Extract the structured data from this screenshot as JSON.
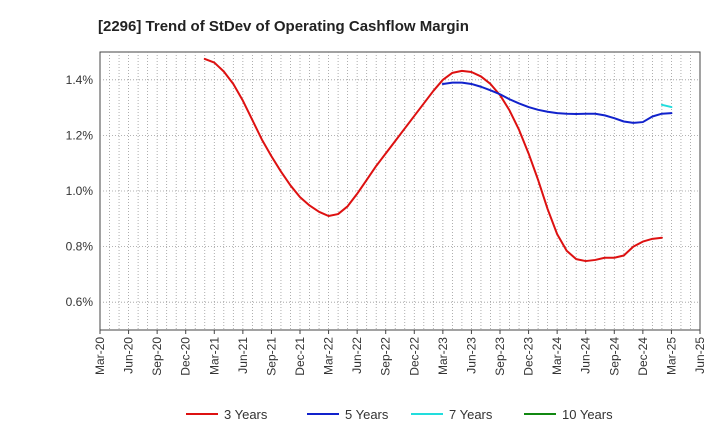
{
  "chart_data": {
    "type": "line",
    "title": "[2296]  Trend of StDev of Operating Cashflow Margin",
    "xlabel": "",
    "ylabel": "",
    "ylim": [
      0.5,
      1.5
    ],
    "y_ticks": [
      "0.6%",
      "0.8%",
      "1.0%",
      "1.2%",
      "1.4%"
    ],
    "y_tick_values": [
      0.6,
      0.8,
      1.0,
      1.2,
      1.4
    ],
    "x_ticks": [
      "Mar-20",
      "Jun-20",
      "Sep-20",
      "Dec-20",
      "Mar-21",
      "Jun-21",
      "Sep-21",
      "Dec-21",
      "Mar-22",
      "Jun-22",
      "Sep-22",
      "Dec-22",
      "Mar-23",
      "Jun-23",
      "Sep-23",
      "Dec-23",
      "Mar-24",
      "Jun-24",
      "Sep-24",
      "Dec-24",
      "Mar-25",
      "Jun-25"
    ],
    "grid": true,
    "legend_position": "bottom",
    "series": [
      {
        "name": "3 Years",
        "color": "#dd1111",
        "points": [
          [
            "Feb-21",
            1.475
          ],
          [
            "Mar-21",
            1.462
          ],
          [
            "Apr-21",
            1.43
          ],
          [
            "May-21",
            1.385
          ],
          [
            "Jun-21",
            1.325
          ],
          [
            "Jul-21",
            1.255
          ],
          [
            "Aug-21",
            1.185
          ],
          [
            "Sep-21",
            1.125
          ],
          [
            "Oct-21",
            1.07
          ],
          [
            "Nov-21",
            1.02
          ],
          [
            "Dec-21",
            0.978
          ],
          [
            "Jan-22",
            0.948
          ],
          [
            "Feb-22",
            0.925
          ],
          [
            "Mar-22",
            0.91
          ],
          [
            "Apr-22",
            0.917
          ],
          [
            "May-22",
            0.945
          ],
          [
            "Jun-22",
            0.99
          ],
          [
            "Jul-22",
            1.04
          ],
          [
            "Aug-22",
            1.09
          ],
          [
            "Sep-22",
            1.135
          ],
          [
            "Oct-22",
            1.18
          ],
          [
            "Nov-22",
            1.225
          ],
          [
            "Dec-22",
            1.27
          ],
          [
            "Jan-23",
            1.315
          ],
          [
            "Feb-23",
            1.36
          ],
          [
            "Mar-23",
            1.4
          ],
          [
            "Apr-23",
            1.425
          ],
          [
            "May-23",
            1.432
          ],
          [
            "Jun-23",
            1.428
          ],
          [
            "Jul-23",
            1.412
          ],
          [
            "Aug-23",
            1.385
          ],
          [
            "Sep-23",
            1.345
          ],
          [
            "Oct-23",
            1.29
          ],
          [
            "Nov-23",
            1.22
          ],
          [
            "Dec-23",
            1.135
          ],
          [
            "Jan-24",
            1.04
          ],
          [
            "Feb-24",
            0.935
          ],
          [
            "Mar-24",
            0.845
          ],
          [
            "Apr-24",
            0.785
          ],
          [
            "May-24",
            0.755
          ],
          [
            "Jun-24",
            0.748
          ],
          [
            "Jul-24",
            0.752
          ],
          [
            "Aug-24",
            0.76
          ],
          [
            "Sep-24",
            0.76
          ],
          [
            "Oct-24",
            0.768
          ],
          [
            "Nov-24",
            0.8
          ],
          [
            "Dec-24",
            0.818
          ],
          [
            "Jan-25",
            0.828
          ],
          [
            "Feb-25",
            0.832
          ]
        ]
      },
      {
        "name": "5 Years",
        "color": "#1122cc",
        "points": [
          [
            "Mar-23",
            1.385
          ],
          [
            "Apr-23",
            1.39
          ],
          [
            "May-23",
            1.39
          ],
          [
            "Jun-23",
            1.385
          ],
          [
            "Jul-23",
            1.375
          ],
          [
            "Aug-23",
            1.362
          ],
          [
            "Sep-23",
            1.348
          ],
          [
            "Oct-23",
            1.33
          ],
          [
            "Nov-23",
            1.315
          ],
          [
            "Dec-23",
            1.302
          ],
          [
            "Jan-24",
            1.292
          ],
          [
            "Feb-24",
            1.285
          ],
          [
            "Mar-24",
            1.28
          ],
          [
            "Apr-24",
            1.278
          ],
          [
            "May-24",
            1.277
          ],
          [
            "Jun-24",
            1.278
          ],
          [
            "Jul-24",
            1.278
          ],
          [
            "Aug-24",
            1.272
          ],
          [
            "Sep-24",
            1.262
          ],
          [
            "Oct-24",
            1.25
          ],
          [
            "Nov-24",
            1.245
          ],
          [
            "Dec-24",
            1.248
          ],
          [
            "Jan-25",
            1.268
          ],
          [
            "Feb-25",
            1.278
          ],
          [
            "Mar-25",
            1.28
          ]
        ]
      },
      {
        "name": "7 Years",
        "color": "#22dddd",
        "points": [
          [
            "Feb-25",
            1.31
          ],
          [
            "Mar-25",
            1.302
          ]
        ]
      },
      {
        "name": "10 Years",
        "color": "#118811",
        "points": []
      }
    ]
  }
}
